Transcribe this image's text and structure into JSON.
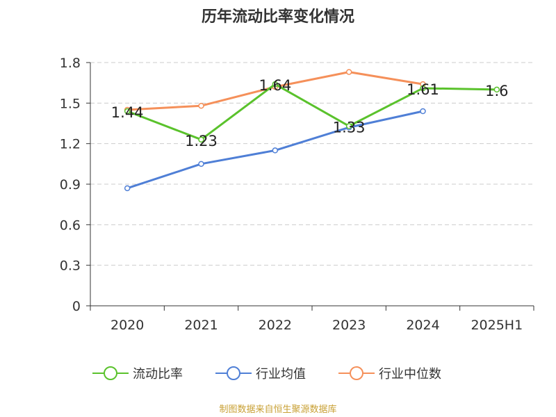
{
  "title": "历年流动比率变化情况",
  "source_note": "制图数据来自恒生聚源数据库",
  "chart_data": {
    "type": "line",
    "categories": [
      "2020",
      "2021",
      "2022",
      "2023",
      "2024",
      "2025H1"
    ],
    "ylim": [
      0,
      1.8
    ],
    "yticks": [
      "0",
      "0.3",
      "0.6",
      "0.9",
      "1.2",
      "1.5",
      "1.8"
    ],
    "grid": true,
    "legend_position": "bottom",
    "series": [
      {
        "name": "流动比率",
        "color": "#5ac22c",
        "values": [
          1.44,
          1.23,
          1.64,
          1.33,
          1.61,
          1.6
        ],
        "labels": [
          "1.44",
          "1.23",
          "1.64",
          "1.33",
          "1.61",
          "1.6"
        ]
      },
      {
        "name": "行业均值",
        "color": "#4f7fd6",
        "values": [
          0.87,
          1.05,
          1.15,
          1.32,
          1.44,
          null
        ]
      },
      {
        "name": "行业中位数",
        "color": "#f5905a",
        "values": [
          1.45,
          1.48,
          1.62,
          1.73,
          1.64,
          null
        ]
      }
    ]
  }
}
